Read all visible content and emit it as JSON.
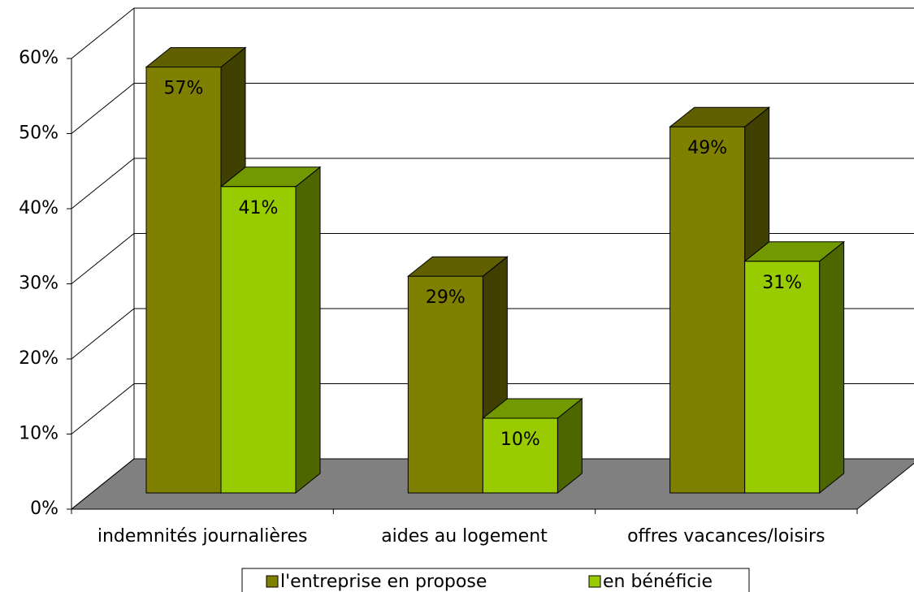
{
  "chart_data": {
    "type": "bar3d",
    "categories": [
      "indemnités journalières",
      "aides au logement",
      "offres vacances/loisirs"
    ],
    "series": [
      {
        "name": "l'entreprise en propose",
        "color": "#808000",
        "values": [
          57,
          29,
          49
        ],
        "value_labels": [
          "57%",
          "29%",
          "49%"
        ]
      },
      {
        "name": "en bénéficie",
        "color": "#99cc00",
        "values": [
          41,
          10,
          31
        ],
        "value_labels": [
          "41%",
          "10%",
          "31%"
        ]
      }
    ],
    "ylim": [
      0,
      60
    ],
    "yticks": [
      {
        "value": 0,
        "label": "0%"
      },
      {
        "value": 10,
        "label": "10%"
      },
      {
        "value": 20,
        "label": "20%"
      },
      {
        "value": 30,
        "label": "30%"
      },
      {
        "value": 40,
        "label": "40%"
      },
      {
        "value": 50,
        "label": "50%"
      },
      {
        "value": 60,
        "label": "60%"
      }
    ],
    "grid": true,
    "legend": "bottom"
  }
}
